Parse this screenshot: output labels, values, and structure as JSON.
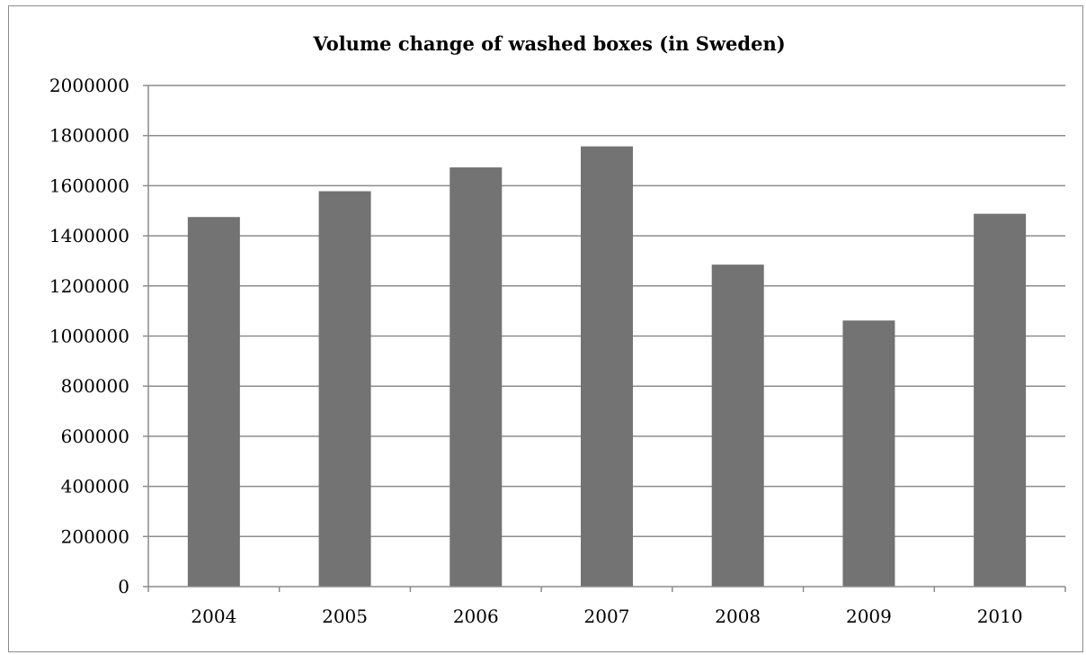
{
  "chart_data": {
    "type": "bar",
    "title": "Volume change of washed boxes (in Sweden)",
    "xlabel": "",
    "ylabel": "",
    "categories": [
      "2004",
      "2005",
      "2006",
      "2007",
      "2008",
      "2009",
      "2010"
    ],
    "values": [
      1475000,
      1578000,
      1673000,
      1757000,
      1285000,
      1062000,
      1488000
    ],
    "ylim": [
      0,
      2000000
    ],
    "yticks": [
      "0",
      "200000",
      "400000",
      "600000",
      "800000",
      "1000000",
      "1200000",
      "1400000",
      "1600000",
      "1800000",
      "2000000"
    ],
    "grid": true,
    "legend": "none",
    "colors": {
      "bar": "#737373",
      "grid": "#8c8c8c",
      "axis": "#8c8c8c",
      "border": "#8c8c8c"
    }
  }
}
